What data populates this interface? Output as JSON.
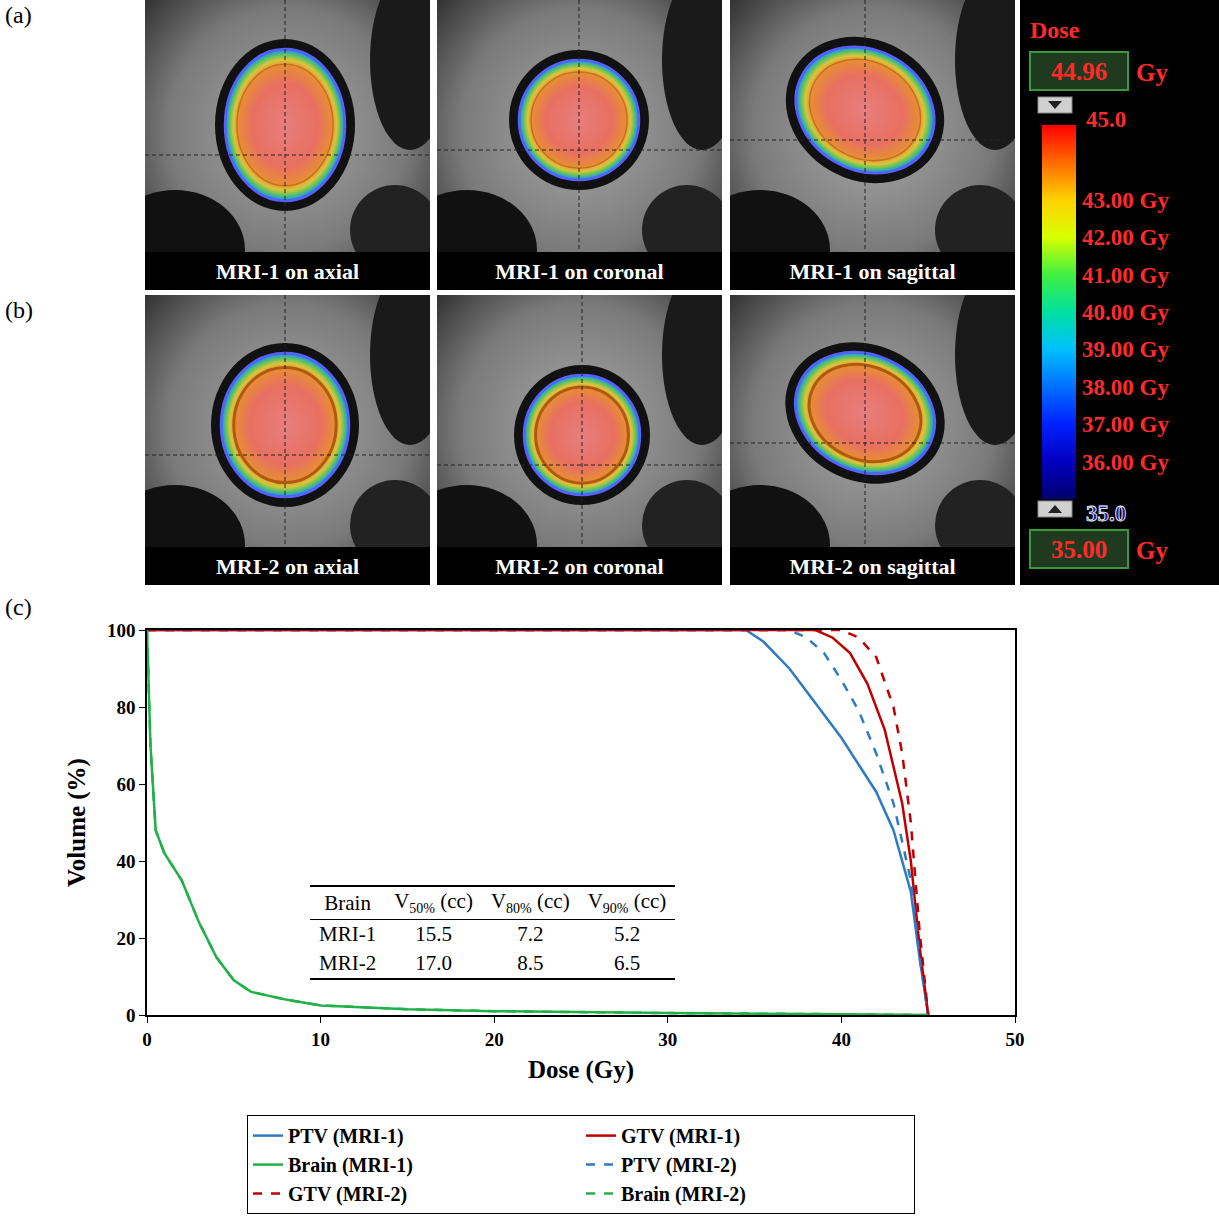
{
  "figure": {
    "rows": [
      {
        "letter": "(a)",
        "images": [
          "MRI-1 on axial",
          "MRI-1 on coronal",
          "MRI-1 on sagittal"
        ]
      },
      {
        "letter": "(b)",
        "images": [
          "MRI-2 on axial",
          "MRI-2 on coronal",
          "MRI-2 on sagittal"
        ]
      }
    ],
    "colorbar": {
      "title": "Dose",
      "unit": "Gy",
      "range": [
        35,
        45
      ],
      "max_label": "45.0",
      "min_label": "35.0",
      "upper_box": "44.96",
      "lower_box": "35.00",
      "ticks": [
        {
          "value": 43,
          "label": "43.00 Gy"
        },
        {
          "value": 42,
          "label": "42.00 Gy"
        },
        {
          "value": 41,
          "label": "41.00 Gy"
        },
        {
          "value": 40,
          "label": "40.00 Gy"
        },
        {
          "value": 39,
          "label": "39.00 Gy"
        },
        {
          "value": 38,
          "label": "38.00 Gy"
        },
        {
          "value": 37,
          "label": "37.00 Gy"
        },
        {
          "value": 36,
          "label": "36.00 Gy"
        }
      ]
    }
  },
  "chart_data": {
    "panel_label": "(c)",
    "type": "line",
    "x_label": "Dose (Gy)",
    "y_label": "Volume (%)",
    "xlim": [
      0,
      50
    ],
    "xticks": [
      0,
      10,
      20,
      30,
      40,
      50
    ],
    "ylim": [
      0,
      100
    ],
    "yticks": [
      0,
      20,
      40,
      60,
      80,
      100
    ],
    "legend": "bottom",
    "series": [
      {
        "name": "PTV (MRI-1)",
        "color": "#2e7bc4",
        "line_style": "solid",
        "x": [
          0,
          34.5,
          35.5,
          37,
          38,
          39,
          40,
          41,
          42,
          43,
          44,
          44.5,
          45
        ],
        "values": [
          100,
          100,
          97,
          90,
          84,
          78,
          72,
          65,
          58,
          48,
          32,
          15,
          0
        ]
      },
      {
        "name": "GTV (MRI-1)",
        "color": "#c00000",
        "line_style": "solid",
        "x": [
          0,
          38.5,
          39.5,
          40.5,
          41.5,
          42.5,
          43.5,
          44,
          44.5,
          45
        ],
        "values": [
          100,
          100,
          98,
          94,
          86,
          74,
          55,
          40,
          18,
          0
        ]
      },
      {
        "name": "Brain (MRI-1)",
        "color": "#22b04a",
        "line_style": "solid",
        "x": [
          0,
          0.2,
          0.5,
          1,
          2,
          3,
          4,
          5,
          6,
          8,
          10,
          15,
          20,
          30,
          40,
          45
        ],
        "values": [
          100,
          70,
          48,
          42,
          35,
          24,
          15,
          9,
          6,
          4,
          2.5,
          1.5,
          1,
          0.5,
          0.2,
          0
        ]
      },
      {
        "name": "PTV (MRI-2)",
        "color": "#2e7bc4",
        "line_style": "dash",
        "x": [
          0,
          37,
          38,
          39,
          40,
          41,
          42,
          43,
          44,
          44.5,
          45
        ],
        "values": [
          100,
          100,
          98,
          94,
          87,
          79,
          68,
          55,
          35,
          15,
          0
        ]
      },
      {
        "name": "GTV (MRI-2)",
        "color": "#c00000",
        "line_style": "dash",
        "x": [
          0,
          40,
          41,
          42,
          43,
          43.5,
          44,
          44.5,
          45
        ],
        "values": [
          100,
          100,
          98,
          93,
          80,
          68,
          50,
          22,
          0
        ]
      },
      {
        "name": "Brain (MRI-2)",
        "color": "#22b04a",
        "line_style": "dash",
        "x": [
          0,
          0.2,
          0.5,
          1,
          2,
          3,
          4,
          5,
          6,
          8,
          10,
          15,
          20,
          30,
          40,
          45
        ],
        "values": [
          100,
          70,
          48,
          42,
          35,
          24,
          15,
          9,
          6,
          4,
          2.5,
          1.5,
          1,
          0.5,
          0.2,
          0
        ]
      }
    ],
    "table": {
      "header": [
        {
          "text": "Brain"
        },
        {
          "text": "V",
          "sub": "50%",
          "suffix": " (cc)"
        },
        {
          "text": "V",
          "sub": "80%",
          "suffix": " (cc)"
        },
        {
          "text": "V",
          "sub": "90%",
          "suffix": " (cc)"
        }
      ],
      "rows": [
        [
          "MRI-1",
          "15.5",
          "7.2",
          "5.2"
        ],
        [
          "MRI-2",
          "17.0",
          "8.5",
          "6.5"
        ]
      ]
    }
  }
}
